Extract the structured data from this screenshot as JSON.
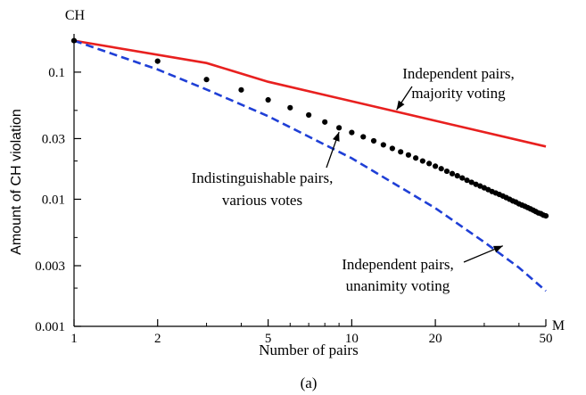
{
  "chart_data": {
    "type": "line",
    "xscale": "log",
    "yscale": "log",
    "xlim": [
      1,
      50
    ],
    "ylim": [
      0.001,
      0.2
    ],
    "x_axis_end_label": "M",
    "y_axis_end_label": "CH",
    "xlabel": "Number of pairs",
    "ylabel": "Amount of CH violation",
    "x_ticks": [
      1,
      2,
      5,
      10,
      20,
      50
    ],
    "x_tick_labels": [
      "1",
      "2",
      "5",
      "10",
      "20",
      "50"
    ],
    "y_ticks": [
      0.001,
      0.003,
      0.01,
      0.03,
      0.1
    ],
    "y_tick_labels": [
      "0.001",
      "0.003",
      "0.01",
      "0.03",
      "0.1"
    ],
    "caption": "(a)",
    "grid": false,
    "series": [
      {
        "name": "Independent pairs, majority voting",
        "style": "solid",
        "color": "#e8201f",
        "x": [
          1,
          3,
          5,
          50
        ],
        "y": [
          0.177,
          0.118,
          0.084,
          0.026
        ]
      },
      {
        "name": "Independent pairs, unanimity voting",
        "style": "dashed",
        "color": "#1f3fd6",
        "x": [
          1,
          2,
          3,
          5,
          10,
          20,
          30,
          40,
          50
        ],
        "y": [
          0.177,
          0.105,
          0.073,
          0.045,
          0.021,
          0.0085,
          0.0046,
          0.0029,
          0.0019
        ]
      },
      {
        "name": "Indistinguishable pairs, various votes",
        "style": "markers",
        "color": "#000000",
        "x": [
          1,
          2,
          3,
          4,
          5,
          6,
          7,
          8,
          9,
          10,
          11,
          12,
          13,
          14,
          15,
          16,
          17,
          18,
          19,
          20,
          21,
          22,
          23,
          24,
          25,
          26,
          27,
          28,
          29,
          30,
          31,
          32,
          33,
          34,
          35,
          36,
          37,
          38,
          39,
          40,
          41,
          42,
          43,
          44,
          45,
          46,
          47,
          48,
          49,
          50
        ],
        "y": [
          0.177,
          0.122,
          0.0875,
          0.0725,
          0.0605,
          0.0525,
          0.046,
          0.0405,
          0.0365,
          0.0335,
          0.031,
          0.0288,
          0.0268,
          0.0251,
          0.0236,
          0.0223,
          0.0211,
          0.02,
          0.0191,
          0.0182,
          0.0174,
          0.0166,
          0.0159,
          0.0153,
          0.0147,
          0.0141,
          0.0136,
          0.0131,
          0.0127,
          0.0123,
          0.0119,
          0.0115,
          0.0112,
          0.0109,
          0.0106,
          0.0103,
          0.01,
          0.0097,
          0.0095,
          0.0092,
          0.009,
          0.0088,
          0.0086,
          0.0084,
          0.0082,
          0.008,
          0.0078,
          0.0077,
          0.0075,
          0.0074
        ]
      }
    ],
    "annotations": [
      {
        "id": "majority",
        "lines": [
          "Independent pairs,",
          "majority voting"
        ],
        "arrow_to": [
          14.5,
          0.0505
        ]
      },
      {
        "id": "indist",
        "lines": [
          "Indistinguishable pairs,",
          "various votes"
        ],
        "arrow_to": [
          9,
          0.0338
        ]
      },
      {
        "id": "unanimity",
        "lines": [
          "Independent pairs,",
          "unanimity voting"
        ],
        "arrow_to": [
          35,
          0.0043
        ]
      }
    ]
  }
}
